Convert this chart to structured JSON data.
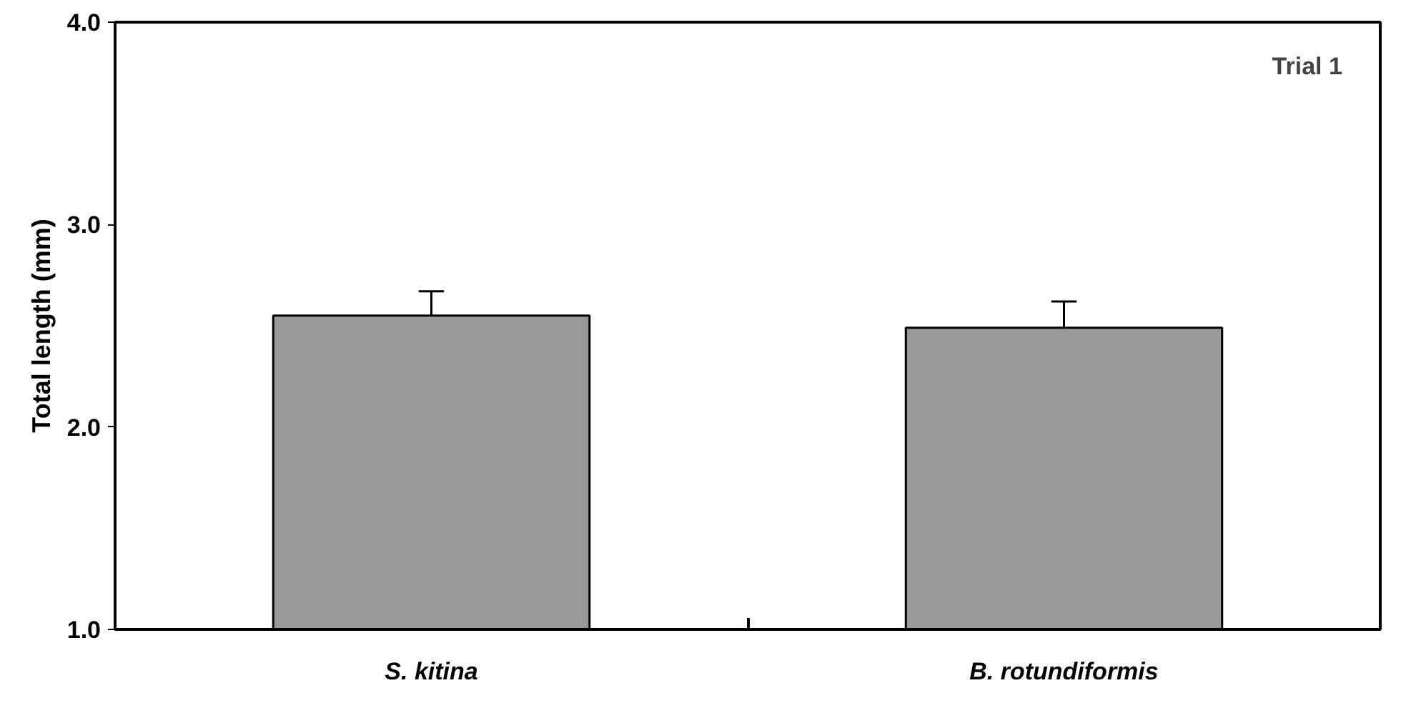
{
  "chart_data": {
    "type": "bar",
    "ylabel": "Total length (mm)",
    "annotations": [
      "Trial 1"
    ],
    "categories": [
      "S. kitina",
      "B. rotundiformis"
    ],
    "values": [
      2.55,
      2.49
    ],
    "errors": [
      0.12,
      0.13
    ],
    "color": "#999999",
    "ylim": [
      1.0,
      4.0
    ],
    "yticks": [
      {
        "value": 1.0,
        "label": "1.0"
      },
      {
        "value": 2.0,
        "label": "2.0"
      },
      {
        "value": 3.0,
        "label": "3.0"
      },
      {
        "value": 4.0,
        "label": "4.0"
      }
    ],
    "grid": false
  }
}
